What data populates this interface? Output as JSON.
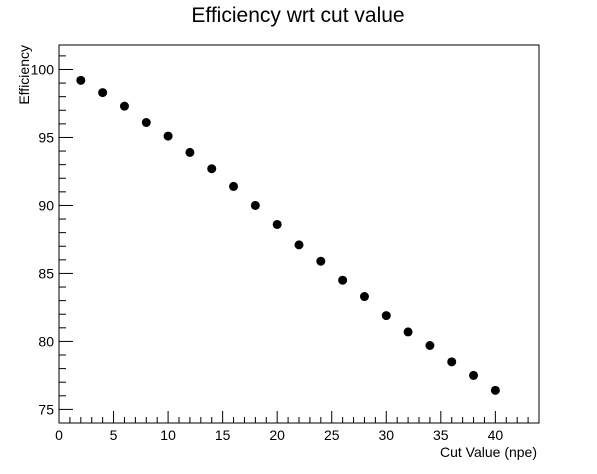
{
  "chart_data": {
    "type": "scatter",
    "title": "Efficiency wrt cut value",
    "xlabel": "Cut Value (npe)",
    "ylabel": "Efficiency",
    "xlim": [
      0,
      44
    ],
    "ylim": [
      74,
      101.8
    ],
    "x_ticks": [
      0,
      5,
      10,
      15,
      20,
      25,
      30,
      35,
      40
    ],
    "y_ticks": [
      75,
      80,
      85,
      90,
      95,
      100
    ],
    "x_minor_step": 1,
    "y_minor_step": 1,
    "grid": false,
    "legend": "none",
    "marker_color": "#000000",
    "series": [
      {
        "x": [
          2,
          4,
          6,
          8,
          10,
          12,
          14,
          16,
          18,
          20,
          22,
          24,
          26,
          28,
          30,
          32,
          34,
          36,
          38,
          40
        ],
        "y": [
          99.2,
          98.3,
          97.3,
          96.1,
          95.1,
          93.9,
          92.7,
          91.4,
          90.0,
          88.6,
          87.1,
          85.9,
          84.5,
          83.3,
          81.9,
          80.7,
          79.7,
          78.5,
          77.5,
          76.4
        ]
      }
    ]
  }
}
